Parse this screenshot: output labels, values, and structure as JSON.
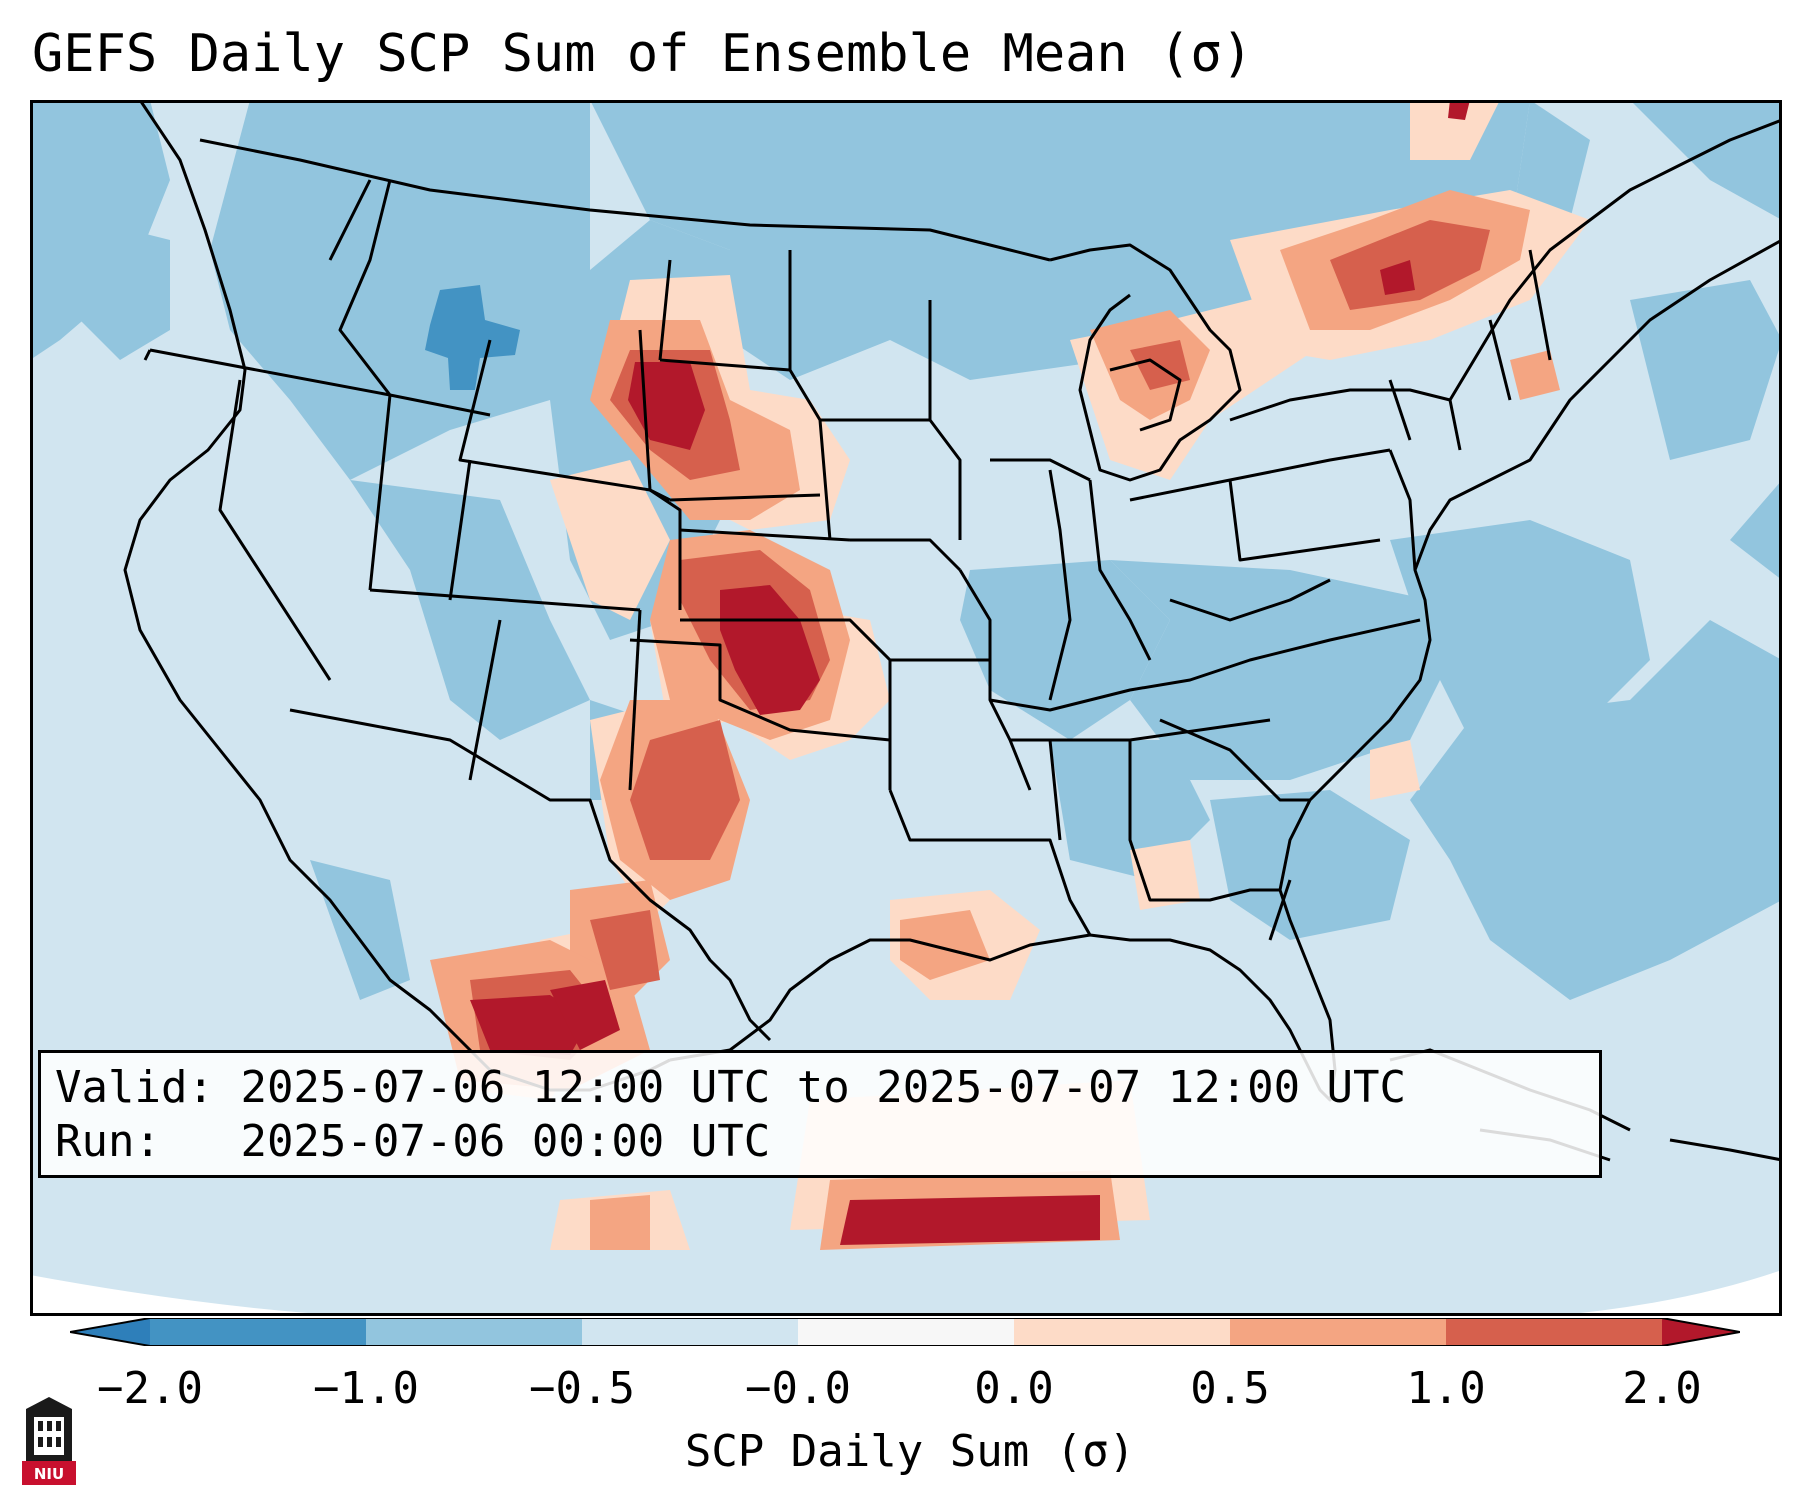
{
  "title": "GEFS Daily SCP Sum of Ensemble Mean (σ)",
  "info": {
    "valid_label": "Valid:",
    "valid_value": "2025-07-06 12:00 UTC to 2025-07-07 12:00 UTC",
    "run_label": "Run:",
    "run_value": "2025-07-06 00:00 UTC"
  },
  "colorbar": {
    "label": "SCP Daily Sum (σ)",
    "tick_labels": [
      "−2.0",
      "−1.0",
      "−0.5",
      "−0.0",
      "0.0",
      "0.5",
      "1.0",
      "2.0"
    ],
    "bins": [
      {
        "range": "< -2.0",
        "color": "#2e7fba"
      },
      {
        "range": "-2.0 to -1.0",
        "color": "#4393c3"
      },
      {
        "range": "-1.0 to -0.5",
        "color": "#92c5de"
      },
      {
        "range": "-0.5 to -0.0",
        "color": "#d1e5f0"
      },
      {
        "range": "-0.0 to 0.0",
        "color": "#f7f7f7"
      },
      {
        "range": "0.0 to 0.5",
        "color": "#fddbc7"
      },
      {
        "range": "0.5 to 1.0",
        "color": "#f4a582"
      },
      {
        "range": "1.0 to 2.0",
        "color": "#d6604d"
      },
      {
        "range": "> 2.0",
        "color": "#b2182b"
      }
    ]
  },
  "map": {
    "region": "Contiguous United States",
    "field": "SCP daily sum anomaly",
    "colors": {
      "ocean_bg": "#d1e5f0",
      "neg_moderate": "#92c5de",
      "neg_strong": "#4393c3",
      "pos_weak": "#fddbc7",
      "pos_moderate": "#f4a582",
      "pos_strong": "#d6604d",
      "pos_extreme": "#b2182b"
    }
  },
  "logo": {
    "text": "NIU",
    "color": "#c8102e"
  }
}
